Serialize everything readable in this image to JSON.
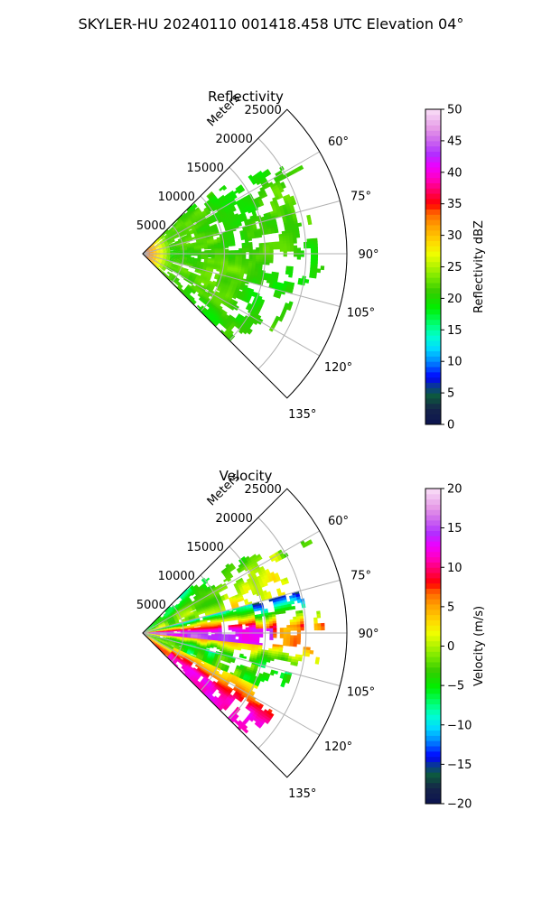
{
  "suptitle": "SKYLER-HU  20240110  001418.458 UTC Elevation 04°",
  "chart_data": [
    {
      "type": "heatmap",
      "subtype": "polar-sector",
      "title": "Reflectivity",
      "radial_label": "Meters",
      "radial_range": [
        0,
        25000
      ],
      "radial_ticks": [
        "5000",
        "10000",
        "15000",
        "20000",
        "25000"
      ],
      "azimuth_range_deg": [
        45,
        135
      ],
      "azimuth_ticks": [
        "60°",
        "75°",
        "90°",
        "105°",
        "120°",
        "135°"
      ],
      "grid": true,
      "colorbar": {
        "label": "Reflectivity dBZ",
        "min": 0,
        "max": 50,
        "ticks": [
          "0",
          "5",
          "10",
          "15",
          "20",
          "25",
          "30",
          "35",
          "40",
          "45",
          "50"
        ]
      },
      "field_summary": {
        "typical_value_range": [
          14,
          26
        ],
        "near_radar_max": 36,
        "max_extent_m": 23500
      }
    },
    {
      "type": "heatmap",
      "subtype": "polar-sector",
      "title": "Velocity",
      "radial_label": "Meters",
      "radial_range": [
        0,
        25000
      ],
      "radial_ticks": [
        "5000",
        "10000",
        "15000",
        "20000",
        "25000"
      ],
      "azimuth_range_deg": [
        45,
        135
      ],
      "azimuth_ticks": [
        "60°",
        "75°",
        "90°",
        "105°",
        "120°",
        "135°"
      ],
      "grid": true,
      "colorbar": {
        "label": "Velocity (m/s)",
        "min": -20,
        "max": 20,
        "ticks": [
          "-20",
          "-15",
          "-10",
          "-5",
          "0",
          "5",
          "10",
          "15",
          "20"
        ]
      },
      "field_summary": {
        "north_sector_range": [
          -8,
          4
        ],
        "east_band_peak": 16,
        "south_sector_peak": 12,
        "max_extent_m": 23500
      }
    }
  ]
}
